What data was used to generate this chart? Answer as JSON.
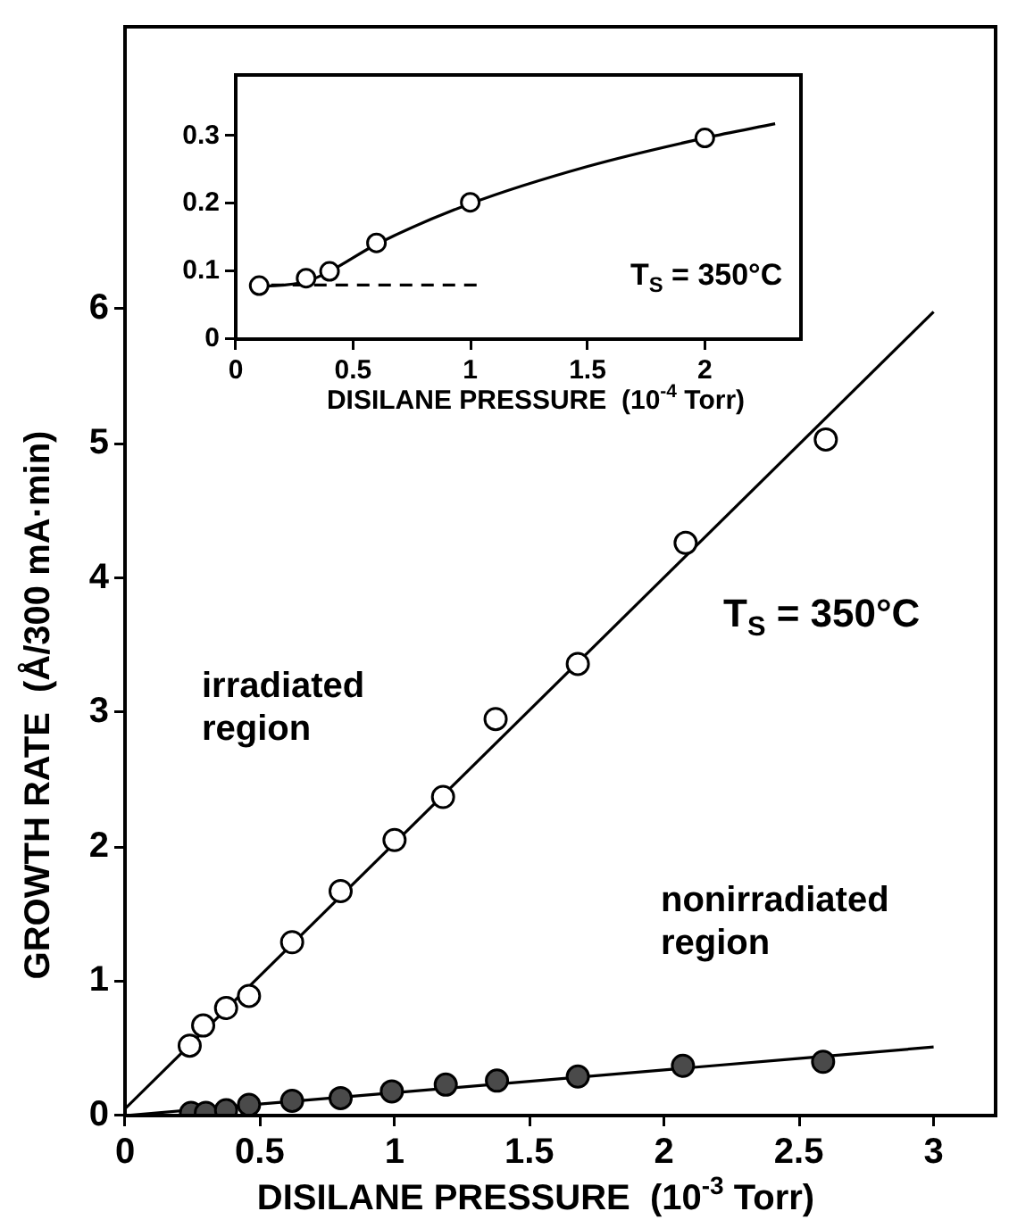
{
  "chart_data": [
    {
      "type": "scatter",
      "xlabel": "DISILANE PRESSURE  (10$^{-3}$ Torr)",
      "ylabel": "GROWTH RATE  (Å/300 mA·min)",
      "xlim": [
        0,
        3.23
      ],
      "ylim": [
        0,
        8.1
      ],
      "xticks": [
        0,
        0.5,
        1,
        1.5,
        2,
        2.5,
        3
      ],
      "yticks": [
        0,
        1,
        2,
        3,
        4,
        5,
        6
      ],
      "annotations": [
        "T$_{S}$ = 350°C"
      ],
      "series": [
        {
          "name": "irradiated region",
          "marker": "circle",
          "color": "#ffffff",
          "x": [
            0.24,
            0.29,
            0.375,
            0.46,
            0.62,
            0.8,
            1.0,
            1.18,
            1.375,
            1.68,
            2.08,
            2.6
          ],
          "values": [
            0.52,
            0.67,
            0.8,
            0.89,
            1.29,
            1.67,
            2.05,
            2.37,
            2.95,
            3.36,
            4.26,
            5.03
          ]
        },
        {
          "name": "nonirradiated region",
          "marker": "circle",
          "color": "#4a4a4a",
          "x": [
            0.245,
            0.3,
            0.375,
            0.46,
            0.62,
            0.8,
            0.99,
            1.19,
            1.38,
            1.68,
            2.07,
            2.59
          ],
          "values": [
            0.02,
            0.02,
            0.04,
            0.08,
            0.11,
            0.13,
            0.18,
            0.23,
            0.26,
            0.29,
            0.37,
            0.4
          ]
        },
        {
          "type": "line",
          "marker": "none",
          "color": "#000000",
          "x": [
            0,
            3
          ],
          "values": [
            0.05,
            5.98
          ]
        },
        {
          "type": "line",
          "marker": "none",
          "color": "#000000",
          "x": [
            0,
            1,
            2,
            3
          ],
          "values": [
            0,
            0.17,
            0.34,
            0.51
          ]
        }
      ]
    },
    {
      "type": "scatter",
      "xlabel": "DISILANE PRESSURE  (10$^{-4}$ Torr)",
      "xlim": [
        0,
        2.41
      ],
      "ylim": [
        0,
        0.39
      ],
      "xticks": [
        0,
        0.5,
        1,
        1.5,
        2
      ],
      "yticks": [
        0,
        0.1,
        0.2,
        0.3
      ],
      "annotations": [
        "T$_{S}$ = 350°C"
      ],
      "series": [
        {
          "marker": "circle",
          "color": "#ffffff",
          "x": [
            0.1,
            0.3,
            0.4,
            0.6,
            1.0,
            2.0
          ],
          "values": [
            0.079,
            0.09,
            0.1,
            0.142,
            0.202,
            0.297
          ]
        },
        {
          "type": "line",
          "marker": "none",
          "color": "#000000",
          "x": [
            0.1,
            0.3,
            0.4,
            0.6,
            1.0,
            1.5,
            2.0,
            2.3
          ],
          "values": [
            0.077,
            0.085,
            0.1,
            0.14,
            0.2,
            0.255,
            0.297,
            0.318
          ]
        },
        {
          "type": "line",
          "marker": "none",
          "line_style": "dashed",
          "color": "#000000",
          "x": [
            0.06,
            1.05
          ],
          "values": [
            0.08,
            0.08
          ]
        }
      ]
    }
  ]
}
